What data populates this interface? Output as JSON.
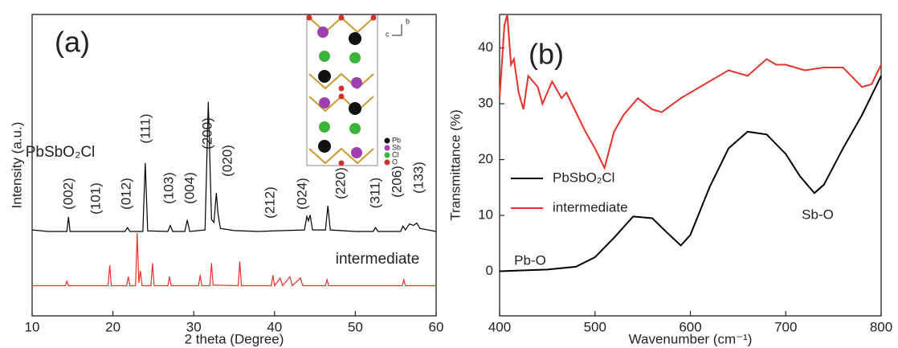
{
  "chart_data": [
    {
      "type": "line",
      "xlabel": "2 theta (Degree)",
      "ylabel": "Intensity (a.u.)",
      "xlim": [
        10,
        60
      ],
      "xticks": [
        10,
        20,
        30,
        40,
        50,
        60
      ],
      "ylim": [
        0,
        100
      ],
      "series": [
        {
          "name": "PbSbO₂Cl",
          "color": "#000000",
          "x": [
            10,
            12,
            14,
            14.3,
            14.5,
            14.7,
            16,
            18,
            19,
            21.5,
            21.8,
            22.1,
            23.7,
            24,
            24.3,
            26.8,
            27.1,
            27.4,
            28.9,
            29.2,
            29.5,
            31.4,
            31.8,
            32.2,
            32.5,
            32.8,
            33.0,
            33.3,
            35,
            38,
            40,
            43.7,
            44.0,
            44.2,
            44.4,
            44.7,
            46.3,
            46.6,
            46.9,
            50,
            52.2,
            52.5,
            52.8,
            55.6,
            55.9,
            56.2,
            56.7,
            57.2,
            57.6,
            58.0,
            60
          ],
          "values": [
            28.5,
            28,
            28,
            28,
            32.8,
            28,
            28,
            28,
            28,
            28,
            29.3,
            28,
            28,
            50.7,
            28.2,
            28,
            30,
            28,
            28,
            31.8,
            28,
            28.5,
            71,
            32,
            31,
            40.8,
            34,
            29,
            28.3,
            28,
            28.2,
            28.5,
            33,
            31.5,
            33.5,
            28.5,
            28.5,
            36.5,
            28.5,
            28,
            28,
            29.3,
            28,
            28,
            29.8,
            28.5,
            30.5,
            30,
            30.8,
            29,
            28
          ]
        },
        {
          "name": "intermediate",
          "color": "#e8312a",
          "x": [
            10,
            12,
            14.1,
            14.3,
            14.5,
            19.4,
            19.6,
            19.8,
            21.7,
            21.9,
            22.1,
            22.8,
            23.0,
            23.2,
            23.4,
            23.6,
            24.7,
            24.9,
            25.1,
            26.8,
            27.0,
            27.2,
            30.6,
            30.8,
            31.0,
            32.0,
            32.2,
            32.4,
            35.5,
            35.7,
            35.9,
            39.6,
            39.8,
            40.0,
            40.7,
            41.0,
            41.9,
            42.2,
            43.2,
            43.5,
            46.3,
            46.5,
            46.7,
            55.8,
            56.0,
            56.2,
            60
          ],
          "values": [
            10,
            10,
            10,
            11.5,
            10,
            10,
            16.8,
            10,
            10,
            13,
            10,
            10,
            27.5,
            11,
            15,
            10,
            10,
            17.5,
            10,
            10,
            13,
            10,
            10,
            13.5,
            10,
            10,
            17.5,
            10.2,
            10,
            18,
            10,
            10,
            13.5,
            10,
            12.5,
            10,
            13,
            10,
            12.5,
            10,
            10,
            12,
            10,
            10,
            12,
            10,
            10
          ]
        }
      ],
      "annotations": [
        "(a)",
        "PbSbO₂Cl",
        "intermediate",
        "(002)",
        "(101)",
        "(012)",
        "(111)",
        "(103)",
        "(004)",
        "(200)",
        "(020)",
        "(212)",
        "(024)",
        "(220)",
        "(311)",
        "(206)",
        "(133)"
      ],
      "inset_labels": [
        "Pb",
        "Sb",
        "Cl",
        "O",
        "b",
        "c"
      ]
    },
    {
      "type": "line",
      "xlabel": "Wavenumber (cm⁻¹)",
      "ylabel": "Transmittance (%)",
      "xlim": [
        400,
        800
      ],
      "xticks": [
        400,
        500,
        600,
        700,
        800
      ],
      "ylim": [
        -8,
        46
      ],
      "yticks": [
        0,
        10,
        20,
        30,
        40
      ],
      "series": [
        {
          "name": "PbSbO₂Cl",
          "color": "#000000",
          "x": [
            400,
            450,
            480,
            500,
            520,
            540,
            560,
            575,
            590,
            600,
            620,
            640,
            660,
            680,
            700,
            715,
            730,
            740,
            760,
            780,
            800
          ],
          "values": [
            0,
            0.3,
            0.8,
            2.5,
            6,
            9.8,
            9.5,
            7,
            4.6,
            6.5,
            15,
            22,
            25,
            24.5,
            21,
            17,
            14,
            15.5,
            22,
            28,
            35
          ]
        },
        {
          "name": "intermediate",
          "color": "#e8312a",
          "x": [
            400,
            405,
            408,
            412,
            415,
            420,
            425,
            430,
            440,
            445,
            455,
            465,
            470,
            480,
            490,
            500,
            510,
            520,
            530,
            545,
            560,
            570,
            590,
            610,
            640,
            660,
            680,
            690,
            700,
            720,
            740,
            760,
            780,
            790,
            800
          ],
          "values": [
            31,
            44,
            46,
            37,
            38,
            32,
            29,
            35,
            33,
            30,
            34,
            31,
            32,
            28.5,
            25,
            22,
            18.5,
            25,
            28,
            31,
            29,
            28.5,
            31,
            33,
            36,
            35,
            38,
            37,
            37,
            36,
            36.5,
            36.5,
            33,
            33.5,
            37
          ]
        }
      ],
      "annotations": [
        "(b)",
        "Pb-O",
        "Sb-O"
      ]
    }
  ]
}
